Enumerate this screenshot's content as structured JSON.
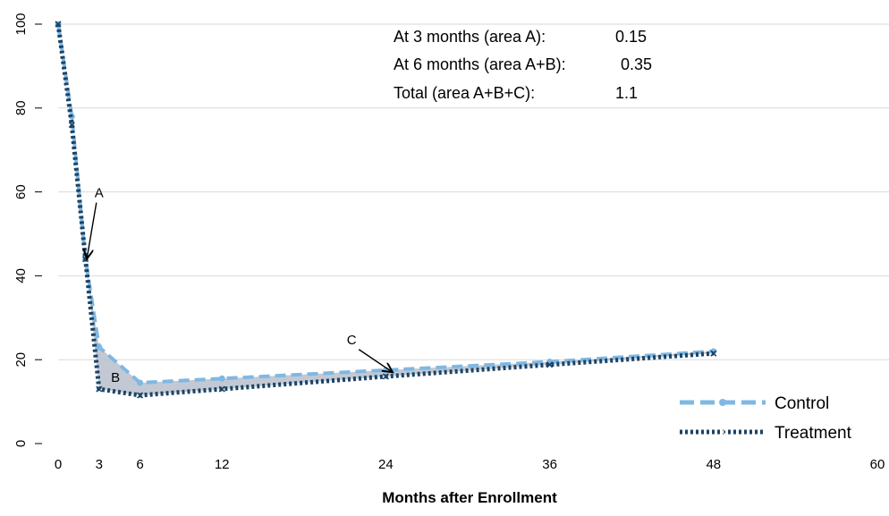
{
  "chart_data": {
    "type": "line",
    "title": "",
    "xlabel": "Months after Enrollment",
    "ylabel": "",
    "xlim": [
      0,
      60
    ],
    "ylim": [
      0,
      100
    ],
    "xticks": [
      0,
      3,
      6,
      12,
      24,
      36,
      48,
      60
    ],
    "yticks": [
      0,
      20,
      40,
      60,
      80,
      100
    ],
    "grid": "horizontal",
    "legend_position": "bottom-right",
    "series": [
      {
        "name": "Control",
        "color": "#7fb8e3",
        "style": "dashed-circle",
        "x": [
          0,
          1,
          2,
          3,
          6,
          12,
          24,
          36,
          48
        ],
        "y": [
          100,
          78,
          44,
          23,
          14.5,
          15.5,
          17.5,
          19.5,
          22
        ]
      },
      {
        "name": "Treatment",
        "color": "#1c4466",
        "style": "dotted-x",
        "x": [
          0,
          1,
          2,
          3,
          6,
          12,
          24,
          36,
          48
        ],
        "y": [
          100,
          76,
          44,
          13,
          11.5,
          13,
          16,
          18.8,
          21.5
        ]
      }
    ],
    "shaded_areas": [
      "A",
      "B",
      "C"
    ],
    "point_labels": [
      {
        "label": "A",
        "text_x": 3,
        "text_y": 60,
        "arrow_to_x": 2.1,
        "arrow_to_y": 44
      },
      {
        "label": "B",
        "text_x": 4.2,
        "text_y": 16,
        "arrow_to_x": null,
        "arrow_to_y": null
      },
      {
        "label": "C",
        "text_x": 21.5,
        "text_y": 25,
        "arrow_to_x": 24.5,
        "arrow_to_y": 17
      }
    ],
    "annotations": [
      {
        "label": "At 3 months (area A):",
        "value": "0.15"
      },
      {
        "label": "At 6 months (area A+B):",
        "value": "0.35"
      },
      {
        "label": "Total (area A+B+C):",
        "value": "1.1"
      }
    ]
  }
}
